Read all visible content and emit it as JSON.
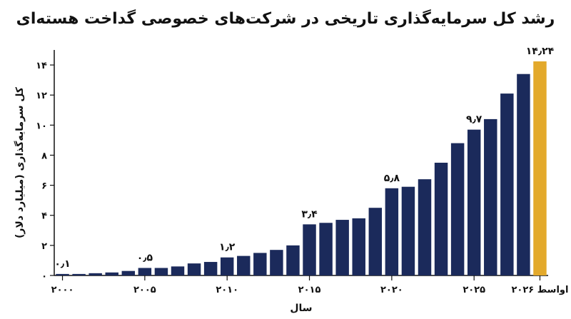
{
  "chart_data": {
    "type": "bar",
    "title": "رشد کل سرمایه‌گذاری تاریخی در شرکت‌های خصوصی گداخت هسته‌ای",
    "xlabel": "سال",
    "ylabel": "کل سرمایه‌گذاری (میلیارد دلار)",
    "ylim": [
      0,
      15
    ],
    "yticks": [
      0,
      2,
      4,
      6,
      8,
      10,
      12,
      14
    ],
    "ytick_labels": [
      "۰",
      "۲",
      "۴",
      "۶",
      "۸",
      "۱۰",
      "۱۲",
      "۱۴"
    ],
    "categories": [
      "2000",
      "2001",
      "2002",
      "2003",
      "2004",
      "2005",
      "2006",
      "2007",
      "2008",
      "2009",
      "2010",
      "2011",
      "2012",
      "2013",
      "2014",
      "2015",
      "2016",
      "2017",
      "2018",
      "2019",
      "2020",
      "2021",
      "2022",
      "2023",
      "2024",
      "2025",
      "2026",
      "2027",
      "2028",
      "اواسط ۲۰۲۶"
    ],
    "values": [
      0.1,
      0.1,
      0.15,
      0.2,
      0.3,
      0.5,
      0.5,
      0.6,
      0.8,
      0.9,
      1.2,
      1.3,
      1.5,
      1.7,
      2.0,
      3.4,
      3.5,
      3.7,
      3.8,
      4.5,
      5.8,
      5.9,
      6.4,
      7.5,
      8.8,
      9.7,
      10.4,
      12.1,
      13.4,
      14.24
    ],
    "xtick_labels": [
      {
        "index": 0,
        "label": "۲۰۰۰"
      },
      {
        "index": 5,
        "label": "۲۰۰۵"
      },
      {
        "index": 10,
        "label": "۲۰۱۰"
      },
      {
        "index": 15,
        "label": "۲۰۱۵"
      },
      {
        "index": 20,
        "label": "۲۰۲۰"
      },
      {
        "index": 25,
        "label": "۲۰۲۵"
      },
      {
        "index": 29,
        "label": "اواسط ۲۰۲۶"
      }
    ],
    "data_labels": [
      {
        "index": 0,
        "label": "۰٫۱"
      },
      {
        "index": 5,
        "label": "۰٫۵"
      },
      {
        "index": 10,
        "label": "۱٫۲"
      },
      {
        "index": 15,
        "label": "۳٫۴"
      },
      {
        "index": 20,
        "label": "۵٫۸"
      },
      {
        "index": 25,
        "label": "۹٫۷"
      },
      {
        "index": 29,
        "label": "۱۴٫۲۴"
      }
    ],
    "bar_color": "#1b2a5b",
    "highlight_color": "#e3a92b",
    "highlight_index": 29,
    "grid": false,
    "legend": "none"
  }
}
